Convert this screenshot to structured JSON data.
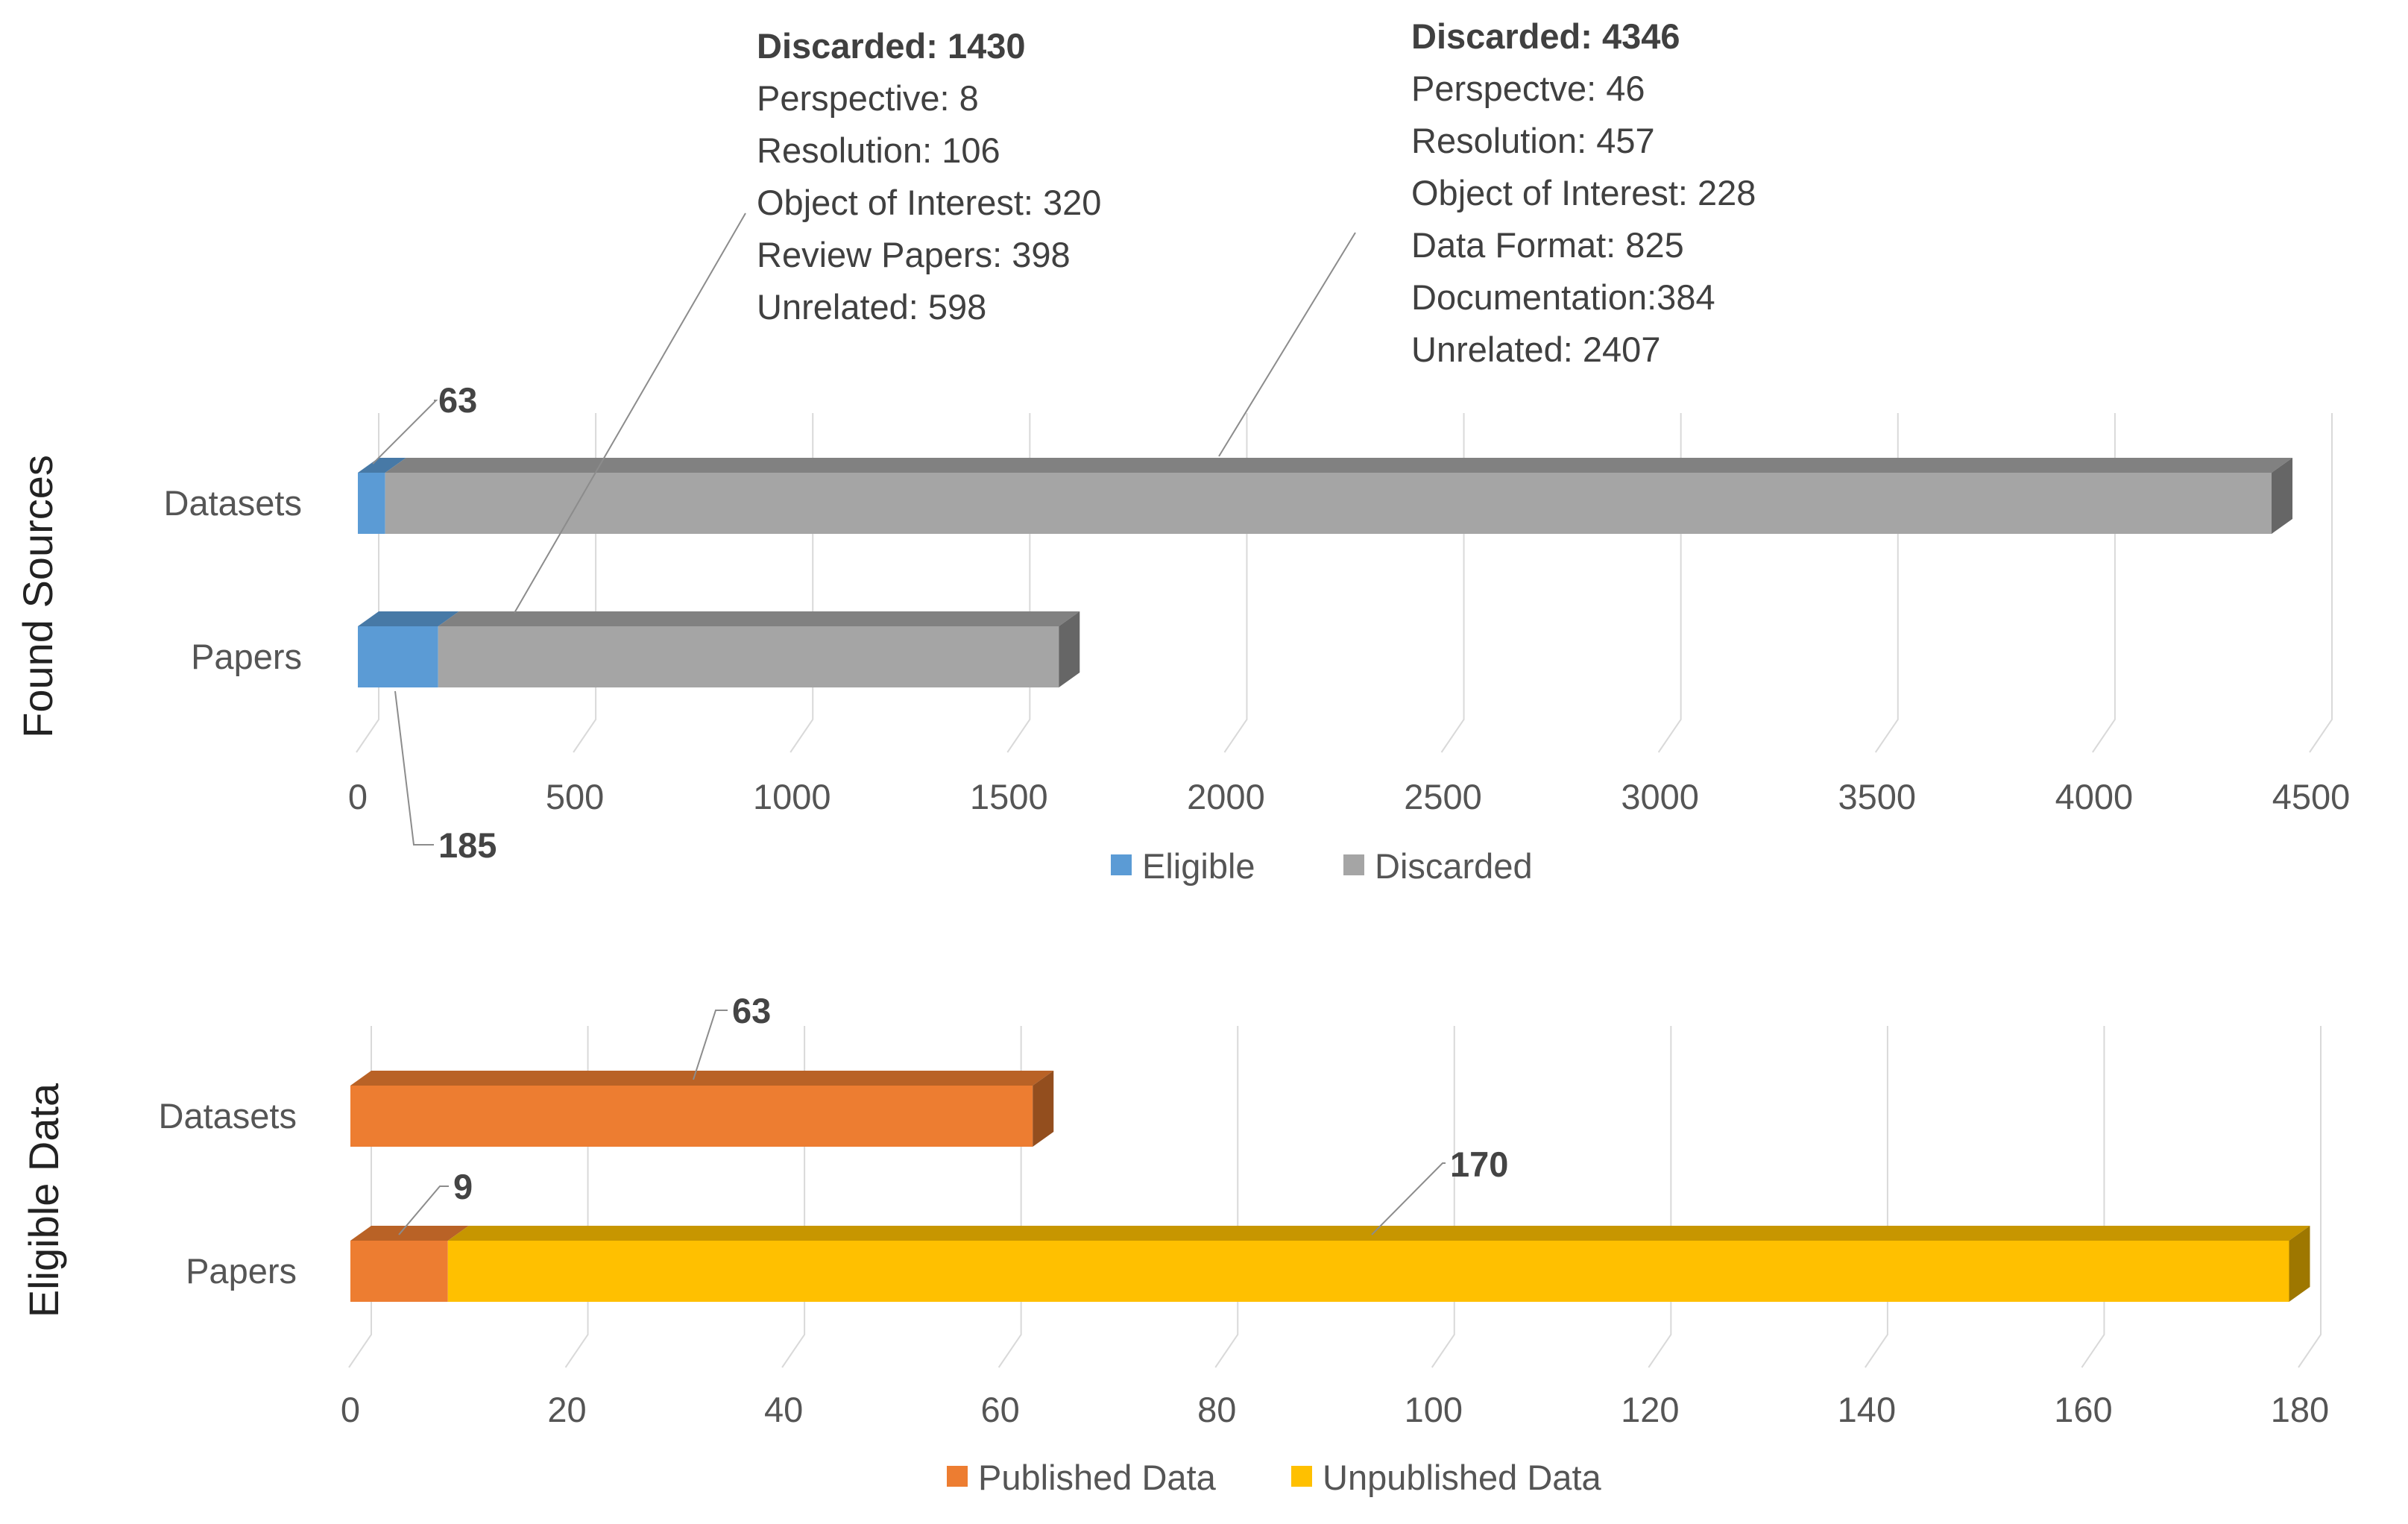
{
  "chart_data": [
    {
      "type": "bar",
      "orientation": "horizontal",
      "stacked": true,
      "group_label": "Found Sources",
      "categories": [
        "Datasets",
        "Papers"
      ],
      "series": [
        {
          "name": "Eligible",
          "values": [
            63,
            185
          ]
        },
        {
          "name": "Discarded",
          "values": [
            4346,
            1430
          ]
        }
      ],
      "xlim": [
        0,
        4500
      ],
      "ticks": [
        0,
        500,
        1000,
        1500,
        2000,
        2500,
        3000,
        3500,
        4000,
        4500
      ],
      "value_labels": [
        {
          "text": "63",
          "category": "Datasets",
          "series": "Eligible"
        },
        {
          "text": "185",
          "category": "Papers",
          "series": "Eligible"
        }
      ],
      "annotations": [
        {
          "category": "Papers",
          "series": "Discarded",
          "lines": [
            "Discarded: 1430",
            "Perspective: 8",
            "Resolution: 106",
            "Object of Interest: 320",
            "Review Papers: 398",
            "Unrelated: 598"
          ]
        },
        {
          "category": "Datasets",
          "series": "Discarded",
          "lines": [
            "Discarded: 4346",
            "Perspectve: 46",
            "Resolution: 457",
            "Object of Interest: 228",
            "Data Format: 825",
            "Documentation:384",
            "Unrelated: 2407"
          ]
        }
      ],
      "legend": "bottom",
      "colors": {
        "Eligible": "#5b9bd5",
        "Discarded": "#a5a5a5"
      },
      "grid": true
    },
    {
      "type": "bar",
      "orientation": "horizontal",
      "stacked": true,
      "group_label": "Eligible Data",
      "categories": [
        "Datasets",
        "Papers"
      ],
      "series": [
        {
          "name": "Published Data",
          "values": [
            63,
            9
          ]
        },
        {
          "name": "Unpublished Data",
          "values": [
            0,
            170
          ]
        }
      ],
      "xlim": [
        0,
        180
      ],
      "ticks": [
        0,
        20,
        40,
        60,
        80,
        100,
        120,
        140,
        160,
        180
      ],
      "value_labels": [
        {
          "text": "63",
          "category": "Datasets",
          "series": "Published Data"
        },
        {
          "text": "9",
          "category": "Papers",
          "series": "Published Data"
        },
        {
          "text": "170",
          "category": "Papers",
          "series": "Unpublished Data"
        }
      ],
      "annotations": [],
      "legend": "bottom",
      "colors": {
        "Published Data": "#ed7d31",
        "Unpublished Data": "#ffc000"
      },
      "grid": true
    }
  ]
}
